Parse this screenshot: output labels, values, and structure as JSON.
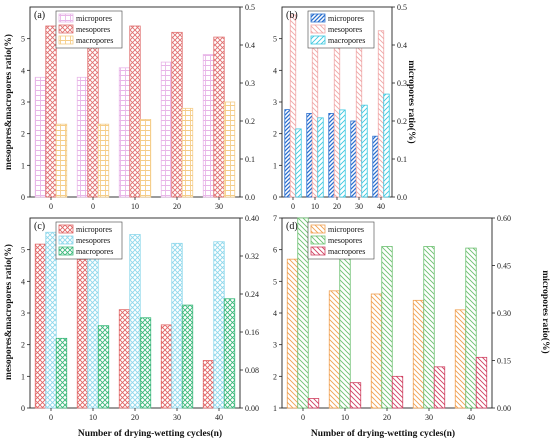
{
  "xlabel_shared": "Number of drying-wetting cycles(n)",
  "left_ylabel_shared": "mesopores&macropores ratio(%)",
  "right_ylabel_shared": "micropores ratio(%)",
  "chart_data": [
    {
      "id": "a",
      "panel_label": "(a)",
      "type": "bar",
      "categories": [
        "0",
        "0",
        "10",
        "20",
        "30"
      ],
      "left_ylim": [
        0,
        6
      ],
      "left_ticks": [
        0,
        1,
        2,
        3,
        4,
        5
      ],
      "right_ylim": [
        0,
        0.5
      ],
      "right_ticks": [
        0.0,
        0.1,
        0.2,
        0.3,
        0.4,
        0.5
      ],
      "legend_position": "top-left",
      "series": [
        {
          "name": "micropores",
          "axis": "right",
          "values": [
            0.315,
            0.315,
            0.34,
            0.355,
            0.375
          ],
          "color": "#e8b6e8",
          "pattern": "grid"
        },
        {
          "name": "mesopores",
          "axis": "left",
          "values": [
            5.4,
            5.4,
            5.4,
            5.2,
            5.05
          ],
          "color": "#e07070",
          "pattern": "cross"
        },
        {
          "name": "macropores",
          "axis": "left",
          "values": [
            2.3,
            2.3,
            2.45,
            2.8,
            3.0
          ],
          "color": "#f5cd88",
          "pattern": "grid"
        }
      ]
    },
    {
      "id": "b",
      "panel_label": "(b)",
      "type": "bar",
      "categories": [
        "0",
        "10",
        "20",
        "30",
        "40"
      ],
      "left_ylim": [
        0,
        6
      ],
      "left_ticks": [
        0,
        1,
        2,
        3,
        4,
        5
      ],
      "right_ylim": [
        0,
        0.5
      ],
      "right_ticks": [
        0.0,
        0.1,
        0.2,
        0.3,
        0.4,
        0.5
      ],
      "legend_position": "top-left",
      "series": [
        {
          "name": "micropores",
          "axis": "right",
          "values": [
            0.23,
            0.22,
            0.22,
            0.2,
            0.16
          ],
          "color": "#2a6fcf",
          "pattern": "diag-dense"
        },
        {
          "name": "mesopores",
          "axis": "left",
          "values": [
            5.75,
            5.45,
            5.2,
            5.35,
            5.25
          ],
          "color": "#f0a8a8",
          "pattern": "diag-rev"
        },
        {
          "name": "macropores",
          "axis": "left",
          "values": [
            2.15,
            2.5,
            2.75,
            2.9,
            3.25
          ],
          "color": "#3cc8e0",
          "pattern": "diag"
        }
      ]
    },
    {
      "id": "c",
      "panel_label": "(c)",
      "type": "bar",
      "categories": [
        "0",
        "10",
        "20",
        "30",
        "40"
      ],
      "left_ylim": [
        0,
        6
      ],
      "left_ticks": [
        0,
        1,
        2,
        3,
        4,
        5
      ],
      "right_ylim": [
        0,
        0.4
      ],
      "right_ticks": [
        0.0,
        0.08,
        0.16,
        0.24,
        0.32,
        0.4
      ],
      "legend_position": "top-left",
      "series": [
        {
          "name": "micropores",
          "axis": "right",
          "values": [
            0.345,
            0.313,
            0.207,
            0.175,
            0.1
          ],
          "color": "#e06464",
          "pattern": "cross"
        },
        {
          "name": "mesopores",
          "axis": "left",
          "values": [
            5.55,
            5.5,
            5.48,
            5.2,
            5.25
          ],
          "color": "#8fd8ec",
          "pattern": "cross"
        },
        {
          "name": "macropores",
          "axis": "left",
          "values": [
            2.2,
            2.6,
            2.85,
            3.25,
            3.45
          ],
          "color": "#3ab87a",
          "pattern": "cross"
        }
      ]
    },
    {
      "id": "d",
      "panel_label": "(d)",
      "type": "bar",
      "categories": [
        "0",
        "10",
        "20",
        "30",
        "40"
      ],
      "left_ylim": [
        1,
        7
      ],
      "left_ticks": [
        1,
        2,
        3,
        4,
        5,
        6,
        7
      ],
      "right_ylim": [
        0,
        0.6
      ],
      "right_ticks": [
        0.0,
        0.15,
        0.3,
        0.45,
        0.6
      ],
      "legend_position": "top-left",
      "series": [
        {
          "name": "micropores",
          "axis": "right",
          "values": [
            0.47,
            0.37,
            0.36,
            0.34,
            0.31
          ],
          "color": "#f0a050",
          "pattern": "diag-rev"
        },
        {
          "name": "mesopores",
          "axis": "left",
          "values": [
            7.0,
            6.1,
            6.1,
            6.1,
            6.05
          ],
          "color": "#6cc070",
          "pattern": "diag-rev"
        },
        {
          "name": "macropores",
          "axis": "left",
          "values": [
            1.3,
            1.8,
            2.0,
            2.3,
            2.6
          ],
          "color": "#d04060",
          "pattern": "diag-rev"
        }
      ]
    }
  ]
}
